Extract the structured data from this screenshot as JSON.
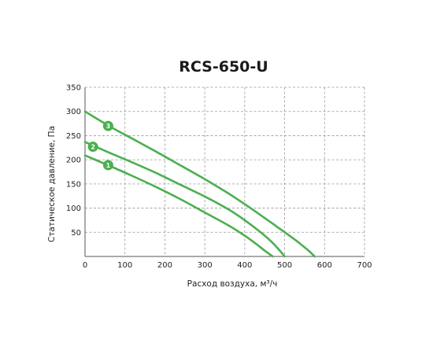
{
  "chart_data": {
    "type": "line",
    "title": "RCS-650-U",
    "xlabel": "Расход воздуха, м³/ч",
    "ylabel": "Статическое давление, Па",
    "xlim": [
      0,
      700
    ],
    "ylim": [
      0,
      350
    ],
    "x_ticks": [
      "0",
      "100",
      "200",
      "300",
      "400",
      "500",
      "600",
      "700"
    ],
    "y_ticks": [
      "50",
      "100",
      "150",
      "200",
      "250",
      "300",
      "350"
    ],
    "grid": true,
    "line_color": "#4caf50",
    "grid_color": "#999999",
    "series": [
      {
        "marker_label": "1",
        "marker_at": [
          58,
          189
        ],
        "points": [
          [
            0,
            209
          ],
          [
            60,
            188
          ],
          [
            120,
            166
          ],
          [
            180,
            143
          ],
          [
            240,
            118
          ],
          [
            300,
            91
          ],
          [
            360,
            64
          ],
          [
            400,
            43
          ],
          [
            430,
            25
          ],
          [
            450,
            12
          ],
          [
            470,
            0
          ]
        ]
      },
      {
        "marker_label": "2",
        "marker_at": [
          20,
          227
        ],
        "points": [
          [
            0,
            237
          ],
          [
            60,
            215
          ],
          [
            120,
            194
          ],
          [
            180,
            172
          ],
          [
            240,
            148
          ],
          [
            300,
            124
          ],
          [
            360,
            97
          ],
          [
            400,
            75
          ],
          [
            440,
            50
          ],
          [
            470,
            28
          ],
          [
            490,
            10
          ],
          [
            500,
            0
          ]
        ]
      },
      {
        "marker_label": "3",
        "marker_at": [
          58,
          270
        ],
        "points": [
          [
            0,
            300
          ],
          [
            60,
            270
          ],
          [
            120,
            243
          ],
          [
            180,
            216
          ],
          [
            240,
            188
          ],
          [
            300,
            160
          ],
          [
            360,
            130
          ],
          [
            420,
            97
          ],
          [
            480,
            62
          ],
          [
            530,
            32
          ],
          [
            560,
            12
          ],
          [
            575,
            0
          ]
        ]
      }
    ]
  }
}
